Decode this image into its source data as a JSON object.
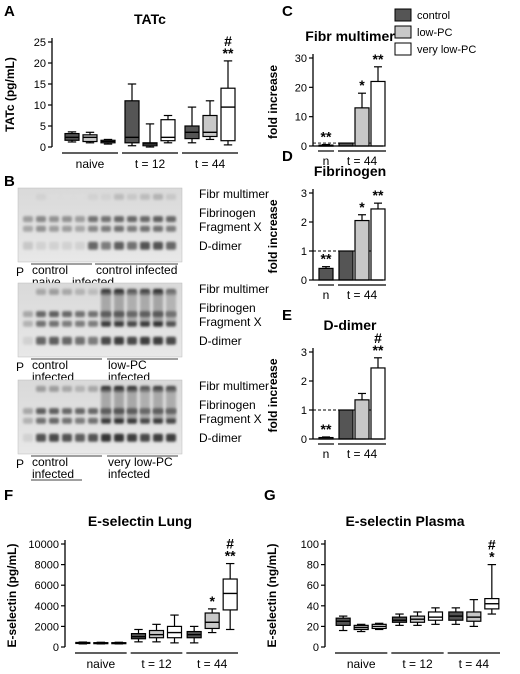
{
  "legend": {
    "items": [
      {
        "label": "control",
        "color": "#555555"
      },
      {
        "label": "low-PC",
        "color": "#c8c8c8"
      },
      {
        "label": "very low-PC",
        "color": "#ffffff"
      }
    ]
  },
  "chart_data": [
    {
      "id": "A",
      "letter": "A",
      "type": "box",
      "title": "TATc",
      "ylabel": "TATc (pg/mL)",
      "ylim": [
        0,
        25
      ],
      "yticks": [
        0,
        5,
        10,
        15,
        20,
        25
      ],
      "groups": [
        {
          "label": "naive",
          "boxes": [
            {
              "series": "control",
              "min": 1.2,
              "q1": 1.6,
              "median": 2.3,
              "q3": 3.2,
              "max": 3.6
            },
            {
              "series": "low-PC",
              "min": 1.0,
              "q1": 1.3,
              "median": 2.3,
              "q3": 2.9,
              "max": 3.5
            },
            {
              "series": "very low-PC",
              "min": 0.7,
              "q1": 1.0,
              "median": 1.3,
              "q3": 1.6,
              "max": 1.8
            }
          ]
        },
        {
          "label": "t = 12",
          "boxes": [
            {
              "series": "control",
              "min": 0.3,
              "q1": 1.0,
              "median": 2.3,
              "q3": 11.0,
              "max": 15.0
            },
            {
              "series": "low-PC",
              "min": 0.0,
              "q1": 0.3,
              "median": 0.7,
              "q3": 1.0,
              "max": 5.5
            },
            {
              "series": "very low-PC",
              "min": 1.0,
              "q1": 1.5,
              "median": 2.3,
              "q3": 6.5,
              "max": 7.5
            }
          ]
        },
        {
          "label": "t = 44",
          "boxes": [
            {
              "series": "control",
              "min": 1.0,
              "q1": 2.0,
              "median": 3.5,
              "q3": 5.0,
              "max": 9.5
            },
            {
              "series": "low-PC",
              "min": 1.8,
              "q1": 2.5,
              "median": 3.5,
              "q3": 7.5,
              "max": 11.0
            },
            {
              "series": "very low-PC",
              "min": 0.5,
              "q1": 1.5,
              "median": 9.5,
              "q3": 14.0,
              "max": 20.5,
              "annot": [
                "#",
                "**"
              ]
            }
          ]
        }
      ]
    },
    {
      "id": "C",
      "letter": "C",
      "type": "bar",
      "title": "Fibr multimer",
      "ylabel": "fold increase",
      "ylim": [
        0,
        30
      ],
      "yticks": [
        0,
        10,
        20,
        30
      ],
      "refline": 1,
      "bars": [
        {
          "series": "control",
          "value": 0.3,
          "err": 0.2,
          "annot": [
            "**"
          ]
        },
        {
          "series": "control",
          "value": 1.0,
          "err": 0
        },
        {
          "series": "low-PC",
          "value": 13.0,
          "err": 5.0,
          "annot": [
            "*"
          ]
        },
        {
          "series": "very low-PC",
          "value": 22.0,
          "err": 5.0,
          "annot": [
            "**"
          ]
        }
      ],
      "xlabels": [
        {
          "label": "n",
          "bars": [
            0
          ]
        },
        {
          "label": "t = 44",
          "bars": [
            1,
            2,
            3
          ]
        }
      ]
    },
    {
      "id": "D",
      "letter": "D",
      "type": "bar",
      "title": "Fibrinogen",
      "ylabel": "fold increase",
      "ylim": [
        0,
        3
      ],
      "yticks": [
        0,
        1,
        2,
        3
      ],
      "refline": 1,
      "bars": [
        {
          "series": "control",
          "value": 0.4,
          "err": 0.06,
          "annot": [
            "**"
          ]
        },
        {
          "series": "control",
          "value": 1.0,
          "err": 0
        },
        {
          "series": "low-PC",
          "value": 2.05,
          "err": 0.2,
          "annot": [
            "*"
          ]
        },
        {
          "series": "very low-PC",
          "value": 2.45,
          "err": 0.2,
          "annot": [
            "**"
          ]
        }
      ],
      "xlabels": [
        {
          "label": "n",
          "bars": [
            0
          ]
        },
        {
          "label": "t = 44",
          "bars": [
            1,
            2,
            3
          ]
        }
      ]
    },
    {
      "id": "E",
      "letter": "E",
      "type": "bar",
      "title": "D-dimer",
      "ylabel": "fold increase",
      "ylim": [
        0,
        3
      ],
      "yticks": [
        0,
        1,
        2,
        3
      ],
      "refline": 1,
      "bars": [
        {
          "series": "control",
          "value": 0.05,
          "err": 0.02,
          "annot": [
            "**"
          ]
        },
        {
          "series": "control",
          "value": 1.0,
          "err": 0
        },
        {
          "series": "low-PC",
          "value": 1.35,
          "err": 0.22
        },
        {
          "series": "very low-PC",
          "value": 2.45,
          "err": 0.35,
          "annot": [
            "#",
            "**"
          ]
        }
      ],
      "xlabels": [
        {
          "label": "n",
          "bars": [
            0
          ]
        },
        {
          "label": "t = 44",
          "bars": [
            1,
            2,
            3
          ]
        }
      ]
    },
    {
      "id": "F",
      "letter": "F",
      "type": "box",
      "title": "E-selectin Lung",
      "ylabel": "E-selectin (pg/mL)",
      "ylim": [
        0,
        10000
      ],
      "yticks": [
        0,
        2000,
        4000,
        6000,
        8000,
        10000
      ],
      "groups": [
        {
          "label": "naive",
          "boxes": [
            {
              "series": "control",
              "min": 300,
              "q1": 360,
              "median": 400,
              "q3": 440,
              "max": 480
            },
            {
              "series": "low-PC",
              "min": 300,
              "q1": 340,
              "median": 380,
              "q3": 420,
              "max": 460
            },
            {
              "series": "very low-PC",
              "min": 300,
              "q1": 340,
              "median": 380,
              "q3": 420,
              "max": 460
            }
          ]
        },
        {
          "label": "t = 12",
          "boxes": [
            {
              "series": "control",
              "min": 500,
              "q1": 800,
              "median": 1000,
              "q3": 1300,
              "max": 1700
            },
            {
              "series": "low-PC",
              "min": 500,
              "q1": 900,
              "median": 1200,
              "q3": 1600,
              "max": 2200
            },
            {
              "series": "very low-PC",
              "min": 400,
              "q1": 900,
              "median": 1400,
              "q3": 2000,
              "max": 3100
            }
          ]
        },
        {
          "label": "t = 44",
          "boxes": [
            {
              "series": "control",
              "min": 400,
              "q1": 900,
              "median": 1200,
              "q3": 1500,
              "max": 2000
            },
            {
              "series": "low-PC",
              "min": 1400,
              "q1": 1800,
              "median": 2400,
              "q3": 3300,
              "max": 3700,
              "annot": [
                "*"
              ]
            },
            {
              "series": "very low-PC",
              "min": 1700,
              "q1": 3600,
              "median": 5200,
              "q3": 6600,
              "max": 8100,
              "annot": [
                "#",
                "**"
              ]
            }
          ]
        }
      ]
    },
    {
      "id": "G",
      "letter": "G",
      "type": "box",
      "title": "E-selectin Plasma",
      "ylabel": "E-selectin (ng/mL)",
      "ylim": [
        0,
        100
      ],
      "yticks": [
        0,
        20,
        40,
        60,
        80,
        100
      ],
      "groups": [
        {
          "label": "naive",
          "boxes": [
            {
              "series": "control",
              "min": 16,
              "q1": 21,
              "median": 25,
              "q3": 28,
              "max": 30
            },
            {
              "series": "low-PC",
              "min": 15,
              "q1": 17,
              "median": 19,
              "q3": 21,
              "max": 22
            },
            {
              "series": "very low-PC",
              "min": 17,
              "q1": 18,
              "median": 20,
              "q3": 22,
              "max": 23
            }
          ]
        },
        {
          "label": "t = 12",
          "boxes": [
            {
              "series": "control",
              "min": 21,
              "q1": 24,
              "median": 26,
              "q3": 29,
              "max": 32
            },
            {
              "series": "low-PC",
              "min": 21,
              "q1": 24,
              "median": 27,
              "q3": 30,
              "max": 34
            },
            {
              "series": "very low-PC",
              "min": 22,
              "q1": 26,
              "median": 29,
              "q3": 34,
              "max": 38
            }
          ]
        },
        {
          "label": "t = 44",
          "boxes": [
            {
              "series": "control",
              "min": 22,
              "q1": 26,
              "median": 30,
              "q3": 34,
              "max": 38
            },
            {
              "series": "low-PC",
              "min": 20,
              "q1": 25,
              "median": 29,
              "q3": 34,
              "max": 46
            },
            {
              "series": "very low-PC",
              "min": 32,
              "q1": 37,
              "median": 42,
              "q3": 47,
              "max": 80,
              "annot": [
                "#",
                "*"
              ]
            }
          ]
        }
      ]
    }
  ],
  "blots": {
    "letter": "B",
    "band_labels": [
      "Fibr multimer",
      "Fibrinogen",
      "Fragment X",
      "D-dimer"
    ],
    "marker": "P",
    "panels": [
      {
        "lane_groups": [
          {
            "line1": "control",
            "line2": "naive"
          },
          {
            "line1": "control infected",
            "line2": "infected"
          }
        ]
      },
      {
        "lane_groups": [
          {
            "line1": "control",
            "line2": "infected"
          },
          {
            "line1": "low-PC",
            "line2": "infected"
          }
        ]
      },
      {
        "lane_groups": [
          {
            "line1": "control",
            "line2": "infected"
          },
          {
            "line1": "very low-PC",
            "line2": "infected"
          }
        ]
      }
    ]
  }
}
